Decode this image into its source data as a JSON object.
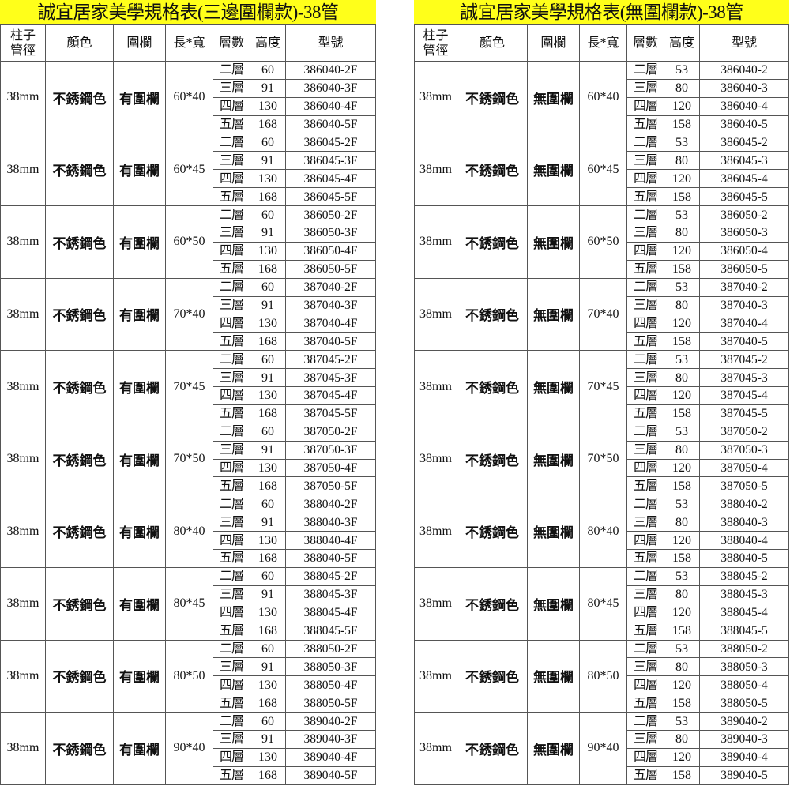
{
  "tables": [
    {
      "title": "誠宜居家美學規格表(三邊圍欄款)-38管",
      "headers": [
        "柱子\n管徑",
        "顏色",
        "圍欄",
        "長*寬",
        "層數",
        "高度",
        "型號"
      ],
      "pipe": "38mm",
      "color": "不銹鋼色",
      "fence": "有圍欄",
      "groups": [
        {
          "size": "60*40",
          "rows": [
            [
              "二層",
              "60",
              "386040-2F"
            ],
            [
              "三層",
              "91",
              "386040-3F"
            ],
            [
              "四層",
              "130",
              "386040-4F"
            ],
            [
              "五層",
              "168",
              "386040-5F"
            ]
          ]
        },
        {
          "size": "60*45",
          "rows": [
            [
              "二層",
              "60",
              "386045-2F"
            ],
            [
              "三層",
              "91",
              "386045-3F"
            ],
            [
              "四層",
              "130",
              "386045-4F"
            ],
            [
              "五層",
              "168",
              "386045-5F"
            ]
          ]
        },
        {
          "size": "60*50",
          "rows": [
            [
              "二層",
              "60",
              "386050-2F"
            ],
            [
              "三層",
              "91",
              "386050-3F"
            ],
            [
              "四層",
              "130",
              "386050-4F"
            ],
            [
              "五層",
              "168",
              "386050-5F"
            ]
          ]
        },
        {
          "size": "70*40",
          "rows": [
            [
              "二層",
              "60",
              "387040-2F"
            ],
            [
              "三層",
              "91",
              "387040-3F"
            ],
            [
              "四層",
              "130",
              "387040-4F"
            ],
            [
              "五層",
              "168",
              "387040-5F"
            ]
          ]
        },
        {
          "size": "70*45",
          "rows": [
            [
              "二層",
              "60",
              "387045-2F"
            ],
            [
              "三層",
              "91",
              "387045-3F"
            ],
            [
              "四層",
              "130",
              "387045-4F"
            ],
            [
              "五層",
              "168",
              "387045-5F"
            ]
          ]
        },
        {
          "size": "70*50",
          "rows": [
            [
              "二層",
              "60",
              "387050-2F"
            ],
            [
              "三層",
              "91",
              "387050-3F"
            ],
            [
              "四層",
              "130",
              "387050-4F"
            ],
            [
              "五層",
              "168",
              "387050-5F"
            ]
          ]
        },
        {
          "size": "80*40",
          "rows": [
            [
              "二層",
              "60",
              "388040-2F"
            ],
            [
              "三層",
              "91",
              "388040-3F"
            ],
            [
              "四層",
              "130",
              "388040-4F"
            ],
            [
              "五層",
              "168",
              "388040-5F"
            ]
          ]
        },
        {
          "size": "80*45",
          "rows": [
            [
              "二層",
              "60",
              "388045-2F"
            ],
            [
              "三層",
              "91",
              "388045-3F"
            ],
            [
              "四層",
              "130",
              "388045-4F"
            ],
            [
              "五層",
              "168",
              "388045-5F"
            ]
          ]
        },
        {
          "size": "80*50",
          "rows": [
            [
              "二層",
              "60",
              "388050-2F"
            ],
            [
              "三層",
              "91",
              "388050-3F"
            ],
            [
              "四層",
              "130",
              "388050-4F"
            ],
            [
              "五層",
              "168",
              "388050-5F"
            ]
          ]
        },
        {
          "size": "90*40",
          "rows": [
            [
              "二層",
              "60",
              "389040-2F"
            ],
            [
              "三層",
              "91",
              "389040-3F"
            ],
            [
              "四層",
              "130",
              "389040-4F"
            ],
            [
              "五層",
              "168",
              "389040-5F"
            ]
          ]
        }
      ]
    },
    {
      "title": "誠宜居家美學規格表(無圍欄款)-38管",
      "headers": [
        "柱子\n管徑",
        "顏色",
        "圍欄",
        "長*寬",
        "層數",
        "高度",
        "型號"
      ],
      "pipe": "38mm",
      "color": "不銹鋼色",
      "fence": "無圍欄",
      "groups": [
        {
          "size": "60*40",
          "rows": [
            [
              "二層",
              "53",
              "386040-2"
            ],
            [
              "三層",
              "80",
              "386040-3"
            ],
            [
              "四層",
              "120",
              "386040-4"
            ],
            [
              "五層",
              "158",
              "386040-5"
            ]
          ]
        },
        {
          "size": "60*45",
          "rows": [
            [
              "二層",
              "53",
              "386045-2"
            ],
            [
              "三層",
              "80",
              "386045-3"
            ],
            [
              "四層",
              "120",
              "386045-4"
            ],
            [
              "五層",
              "158",
              "386045-5"
            ]
          ]
        },
        {
          "size": "60*50",
          "rows": [
            [
              "二層",
              "53",
              "386050-2"
            ],
            [
              "三層",
              "80",
              "386050-3"
            ],
            [
              "四層",
              "120",
              "386050-4"
            ],
            [
              "五層",
              "158",
              "386050-5"
            ]
          ]
        },
        {
          "size": "70*40",
          "rows": [
            [
              "二層",
              "53",
              "387040-2"
            ],
            [
              "三層",
              "80",
              "387040-3"
            ],
            [
              "四層",
              "120",
              "387040-4"
            ],
            [
              "五層",
              "158",
              "387040-5"
            ]
          ]
        },
        {
          "size": "70*45",
          "rows": [
            [
              "二層",
              "53",
              "387045-2"
            ],
            [
              "三層",
              "80",
              "387045-3"
            ],
            [
              "四層",
              "120",
              "387045-4"
            ],
            [
              "五層",
              "158",
              "387045-5"
            ]
          ]
        },
        {
          "size": "70*50",
          "rows": [
            [
              "二層",
              "53",
              "387050-2"
            ],
            [
              "三層",
              "80",
              "387050-3"
            ],
            [
              "四層",
              "120",
              "387050-4"
            ],
            [
              "五層",
              "158",
              "387050-5"
            ]
          ]
        },
        {
          "size": "80*40",
          "rows": [
            [
              "二層",
              "53",
              "388040-2"
            ],
            [
              "三層",
              "80",
              "388040-3"
            ],
            [
              "四層",
              "120",
              "388040-4"
            ],
            [
              "五層",
              "158",
              "388040-5"
            ]
          ]
        },
        {
          "size": "80*45",
          "rows": [
            [
              "二層",
              "53",
              "388045-2"
            ],
            [
              "三層",
              "80",
              "388045-3"
            ],
            [
              "四層",
              "120",
              "388045-4"
            ],
            [
              "五層",
              "158",
              "388045-5"
            ]
          ]
        },
        {
          "size": "80*50",
          "rows": [
            [
              "二層",
              "53",
              "388050-2"
            ],
            [
              "三層",
              "80",
              "388050-3"
            ],
            [
              "四層",
              "120",
              "388050-4"
            ],
            [
              "五層",
              "158",
              "388050-5"
            ]
          ]
        },
        {
          "size": "90*40",
          "rows": [
            [
              "二層",
              "53",
              "389040-2"
            ],
            [
              "三層",
              "80",
              "389040-3"
            ],
            [
              "四層",
              "120",
              "389040-4"
            ],
            [
              "五層",
              "158",
              "389040-5"
            ]
          ]
        }
      ]
    }
  ],
  "colors": {
    "title_bg": "#ffff1a",
    "border": "#555555"
  }
}
